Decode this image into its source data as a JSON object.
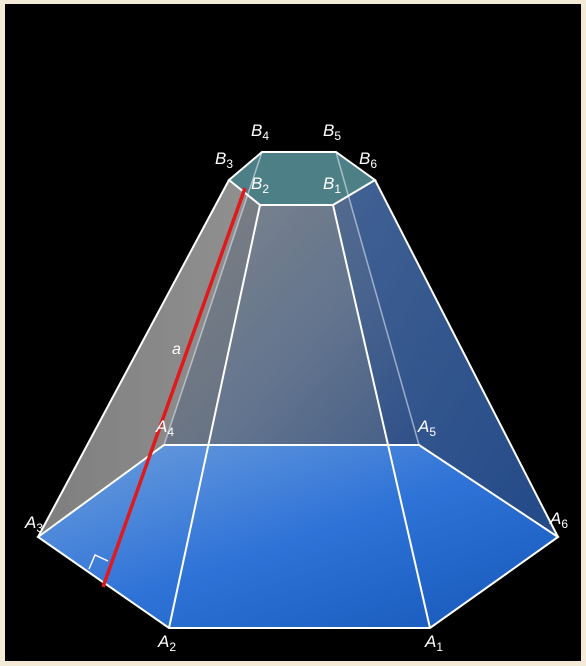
{
  "figure": {
    "label_color": "#ffffff",
    "edge_color": "#ffffff",
    "highlight_color": "#e0191c",
    "base_color": "#2a6fd6",
    "top_face_color": "#4d7f86",
    "side_face_color": "#8a8a8a",
    "vertex_labels": {
      "A1": {
        "letter": "A",
        "sub": "1"
      },
      "A2": {
        "letter": "A",
        "sub": "2"
      },
      "A3": {
        "letter": "A",
        "sub": "3"
      },
      "A4": {
        "letter": "A",
        "sub": "4"
      },
      "A5": {
        "letter": "A",
        "sub": "5"
      },
      "A6": {
        "letter": "A",
        "sub": "6"
      },
      "B1": {
        "letter": "B",
        "sub": "1"
      },
      "B2": {
        "letter": "B",
        "sub": "2"
      },
      "B3": {
        "letter": "B",
        "sub": "3"
      },
      "B4": {
        "letter": "B",
        "sub": "4"
      },
      "B5": {
        "letter": "B",
        "sub": "5"
      },
      "B6": {
        "letter": "B",
        "sub": "6"
      }
    },
    "segment_label": "a"
  }
}
